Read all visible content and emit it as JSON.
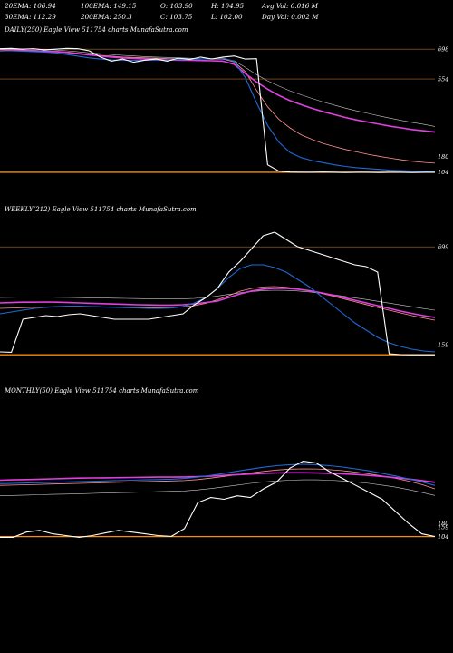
{
  "stats": {
    "row1": [
      "20EMA: 106.94",
      "100EMA: 149.15",
      "O: 103.90",
      "H: 104.95",
      "Avg Vol: 0.016  M"
    ],
    "row2": [
      "30EMA: 112.29",
      "200EMA: 250.3",
      "C: 103.75",
      "L: 102.00",
      "Day Vol: 0.002  M"
    ]
  },
  "panels": {
    "daily": {
      "label": "DAILY(250) Eagle  View  511754  charts MunafaSutra.com"
    },
    "weekly": {
      "label": "WEEKLY(212) Eagle  View  511754  charts MunafaSutra.com"
    },
    "monthly": {
      "label": "MONTHLY(50) Eagle  View  511754  charts MunafaSutra.com"
    }
  },
  "colors": {
    "background": "#000000",
    "price": "#ffffff",
    "ema_short": "#1e6ad6",
    "ema_long": "#e040e0",
    "ema_mid": "#ff9090",
    "ema_slow": "#c8c8c8",
    "reference_line": "#b06a2a",
    "current_line": "#ff8c00"
  },
  "chart_data": [
    {
      "type": "line",
      "name": "daily",
      "ylim": [
        60,
        760
      ],
      "tick_labels": [
        {
          "text": "698",
          "value": 698
        },
        {
          "text": "554",
          "value": 554
        },
        {
          "text": "180",
          "value": 180
        },
        {
          "text": "104",
          "value": 104
        }
      ],
      "hlines": [
        698,
        554,
        104
      ],
      "series": [
        {
          "role": "price",
          "values": [
            700,
            702,
            698,
            700,
            695,
            698,
            702,
            700,
            690,
            660,
            640,
            650,
            635,
            645,
            650,
            640,
            655,
            648,
            660,
            650,
            660,
            665,
            650,
            652,
            140,
            110,
            105,
            104,
            104,
            105,
            104,
            103,
            104,
            104,
            103,
            104,
            104,
            103,
            104,
            104
          ]
        },
        {
          "role": "ema_short",
          "values": [
            690,
            690,
            688,
            686,
            684,
            680,
            672,
            664,
            656,
            650,
            646,
            645,
            644,
            644,
            645,
            646,
            647,
            648,
            650,
            652,
            654,
            640,
            560,
            440,
            330,
            250,
            200,
            175,
            160,
            150,
            140,
            132,
            126,
            122,
            118,
            114,
            112,
            110,
            108,
            107
          ]
        },
        {
          "role": "ema_long",
          "values": [
            690,
            692,
            692,
            690,
            688,
            686,
            682,
            676,
            670,
            665,
            660,
            656,
            653,
            650,
            648,
            646,
            645,
            644,
            643,
            642,
            640,
            625,
            580,
            540,
            505,
            475,
            450,
            430,
            412,
            396,
            382,
            368,
            356,
            346,
            336,
            326,
            318,
            310,
            304,
            298
          ]
        },
        {
          "role": "ema_mid",
          "values": [
            696,
            696,
            694,
            692,
            690,
            688,
            684,
            678,
            672,
            668,
            664,
            660,
            658,
            656,
            654,
            652,
            651,
            650,
            650,
            650,
            650,
            636,
            590,
            500,
            420,
            360,
            318,
            285,
            262,
            243,
            228,
            214,
            202,
            191,
            181,
            172,
            164,
            157,
            152,
            148
          ]
        },
        {
          "role": "ema_slow",
          "values": [
            700,
            700,
            699,
            698,
            696,
            694,
            690,
            685,
            680,
            676,
            672,
            668,
            665,
            662,
            660,
            658,
            656,
            654,
            652,
            651,
            650,
            642,
            610,
            575,
            545,
            520,
            497,
            478,
            460,
            443,
            428,
            413,
            400,
            388,
            376,
            365,
            354,
            344,
            335,
            325
          ]
        }
      ]
    },
    {
      "type": "line",
      "name": "weekly",
      "ylim": [
        60,
        860
      ],
      "tick_labels": [
        {
          "text": "699",
          "value": 699
        },
        {
          "text": "159",
          "value": 159
        }
      ],
      "hlines": [
        699,
        104
      ],
      "series": [
        {
          "role": "price",
          "values": [
            120,
            118,
            300,
            310,
            320,
            315,
            325,
            330,
            320,
            310,
            300,
            300,
            300,
            300,
            310,
            320,
            330,
            380,
            420,
            470,
            560,
            620,
            690,
            760,
            780,
            740,
            700,
            680,
            660,
            640,
            620,
            600,
            590,
            560,
            110,
            105,
            104,
            104,
            104
          ]
        },
        {
          "role": "ema_short",
          "values": [
            330,
            340,
            350,
            360,
            365,
            370,
            372,
            372,
            370,
            368,
            366,
            364,
            362,
            360,
            360,
            362,
            370,
            390,
            420,
            470,
            530,
            580,
            600,
            600,
            585,
            560,
            520,
            480,
            430,
            380,
            330,
            280,
            240,
            200,
            170,
            150,
            135,
            125,
            120
          ]
        },
        {
          "role": "ema_long",
          "values": [
            390,
            392,
            394,
            394,
            395,
            394,
            392,
            390,
            388,
            386,
            384,
            382,
            380,
            379,
            378,
            378,
            380,
            385,
            392,
            400,
            420,
            440,
            456,
            466,
            470,
            470,
            466,
            458,
            447,
            434,
            420,
            405,
            390,
            375,
            360,
            345,
            332,
            320,
            310
          ]
        },
        {
          "role": "ema_mid",
          "values": [
            360,
            362,
            364,
            366,
            368,
            369,
            370,
            370,
            369,
            368,
            367,
            366,
            365,
            364,
            364,
            365,
            368,
            375,
            388,
            408,
            430,
            455,
            470,
            478,
            480,
            476,
            468,
            457,
            444,
            429,
            413,
            397,
            381,
            365,
            350,
            335,
            320,
            307,
            295
          ]
        },
        {
          "role": "ema_slow",
          "values": [
            420,
            421,
            422,
            422,
            422,
            421,
            420,
            419,
            418,
            417,
            416,
            415,
            414,
            413,
            412,
            412,
            413,
            415,
            420,
            428,
            437,
            446,
            453,
            458,
            460,
            459,
            456,
            451,
            444,
            436,
            427,
            418,
            409,
            399,
            389,
            379,
            369,
            359,
            350
          ]
        }
      ]
    },
    {
      "type": "line",
      "name": "monthly",
      "ylim": [
        60,
        900
      ],
      "tick_labels": [
        {
          "text": "180",
          "value": 180
        },
        {
          "text": "159",
          "value": 159
        },
        {
          "text": "104",
          "value": 104
        }
      ],
      "hlines": [
        104
      ],
      "series": [
        {
          "role": "price",
          "values": [
            100,
            100,
            130,
            140,
            120,
            110,
            100,
            110,
            125,
            140,
            130,
            120,
            110,
            105,
            150,
            300,
            330,
            320,
            340,
            330,
            380,
            420,
            500,
            540,
            530,
            480,
            440,
            400,
            360,
            320,
            250,
            180,
            120,
            104
          ]
        },
        {
          "role": "ema_short",
          "values": [
            410,
            412,
            414,
            416,
            418,
            420,
            422,
            424,
            426,
            428,
            430,
            432,
            434,
            436,
            440,
            448,
            458,
            470,
            482,
            494,
            505,
            514,
            520,
            522,
            520,
            514,
            506,
            496,
            484,
            470,
            455,
            438,
            420,
            400
          ]
        },
        {
          "role": "ema_long",
          "values": [
            430,
            432,
            434,
            436,
            438,
            440,
            442,
            443,
            444,
            445,
            446,
            447,
            448,
            448,
            449,
            451,
            454,
            458,
            462,
            466,
            470,
            472,
            473,
            473,
            472,
            470,
            467,
            463,
            458,
            452,
            445,
            437,
            428,
            418
          ]
        },
        {
          "role": "ema_mid",
          "values": [
            400,
            402,
            404,
            406,
            408,
            410,
            412,
            414,
            416,
            418,
            420,
            422,
            424,
            426,
            428,
            434,
            442,
            452,
            462,
            472,
            481,
            489,
            494,
            496,
            495,
            491,
            485,
            477,
            467,
            455,
            441,
            425,
            405,
            380
          ]
        },
        {
          "role": "ema_slow",
          "values": [
            340,
            342,
            344,
            346,
            348,
            350,
            352,
            354,
            356,
            358,
            360,
            362,
            364,
            366,
            368,
            374,
            382,
            392,
            402,
            412,
            420,
            426,
            430,
            432,
            432,
            430,
            426,
            420,
            412,
            402,
            390,
            376,
            360,
            342
          ]
        }
      ]
    }
  ]
}
